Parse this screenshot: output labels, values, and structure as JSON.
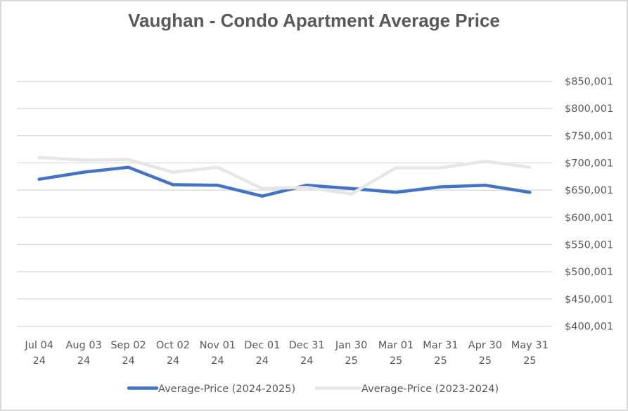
{
  "chart_data": {
    "type": "line",
    "title": "Vaughan - Condo Apartment Average Price",
    "xlabel": "",
    "ylabel": "",
    "categories": [
      [
        "Jul 04",
        "24"
      ],
      [
        "Aug 03",
        "24"
      ],
      [
        "Sep 02",
        "24"
      ],
      [
        "Oct 02",
        "24"
      ],
      [
        "Nov 01",
        "24"
      ],
      [
        "Dec 01",
        "24"
      ],
      [
        "Dec 31",
        "24"
      ],
      [
        "Jan 30",
        "25"
      ],
      [
        "Mar 01",
        "25"
      ],
      [
        "Mar 31",
        "25"
      ],
      [
        "Apr 30",
        "25"
      ],
      [
        "May 31",
        "25"
      ]
    ],
    "ylim": [
      400001,
      850001
    ],
    "yticks": [
      400001,
      450001,
      500001,
      550001,
      600001,
      650001,
      700001,
      750001,
      800001,
      850001
    ],
    "ytick_labels": [
      "$400,001",
      "$450,001",
      "$500,001",
      "$550,001",
      "$600,001",
      "$650,001",
      "$700,001",
      "$750,001",
      "$800,001",
      "$850,001"
    ],
    "y_axis_side": "right",
    "grid": true,
    "legend_position": "bottom",
    "series": [
      {
        "name": "Average-Price (2024-2025)",
        "color": "#4472C4",
        "values": [
          670000,
          683000,
          692000,
          660000,
          659000,
          639000,
          659000,
          653000,
          646000,
          656000,
          659000,
          646000
        ]
      },
      {
        "name": "Average-Price (2023-2024)",
        "color": "#E7E6E6",
        "values": [
          710000,
          705000,
          706000,
          683000,
          692000,
          653000,
          655000,
          643000,
          691000,
          691000,
          703000,
          692000
        ]
      }
    ]
  }
}
